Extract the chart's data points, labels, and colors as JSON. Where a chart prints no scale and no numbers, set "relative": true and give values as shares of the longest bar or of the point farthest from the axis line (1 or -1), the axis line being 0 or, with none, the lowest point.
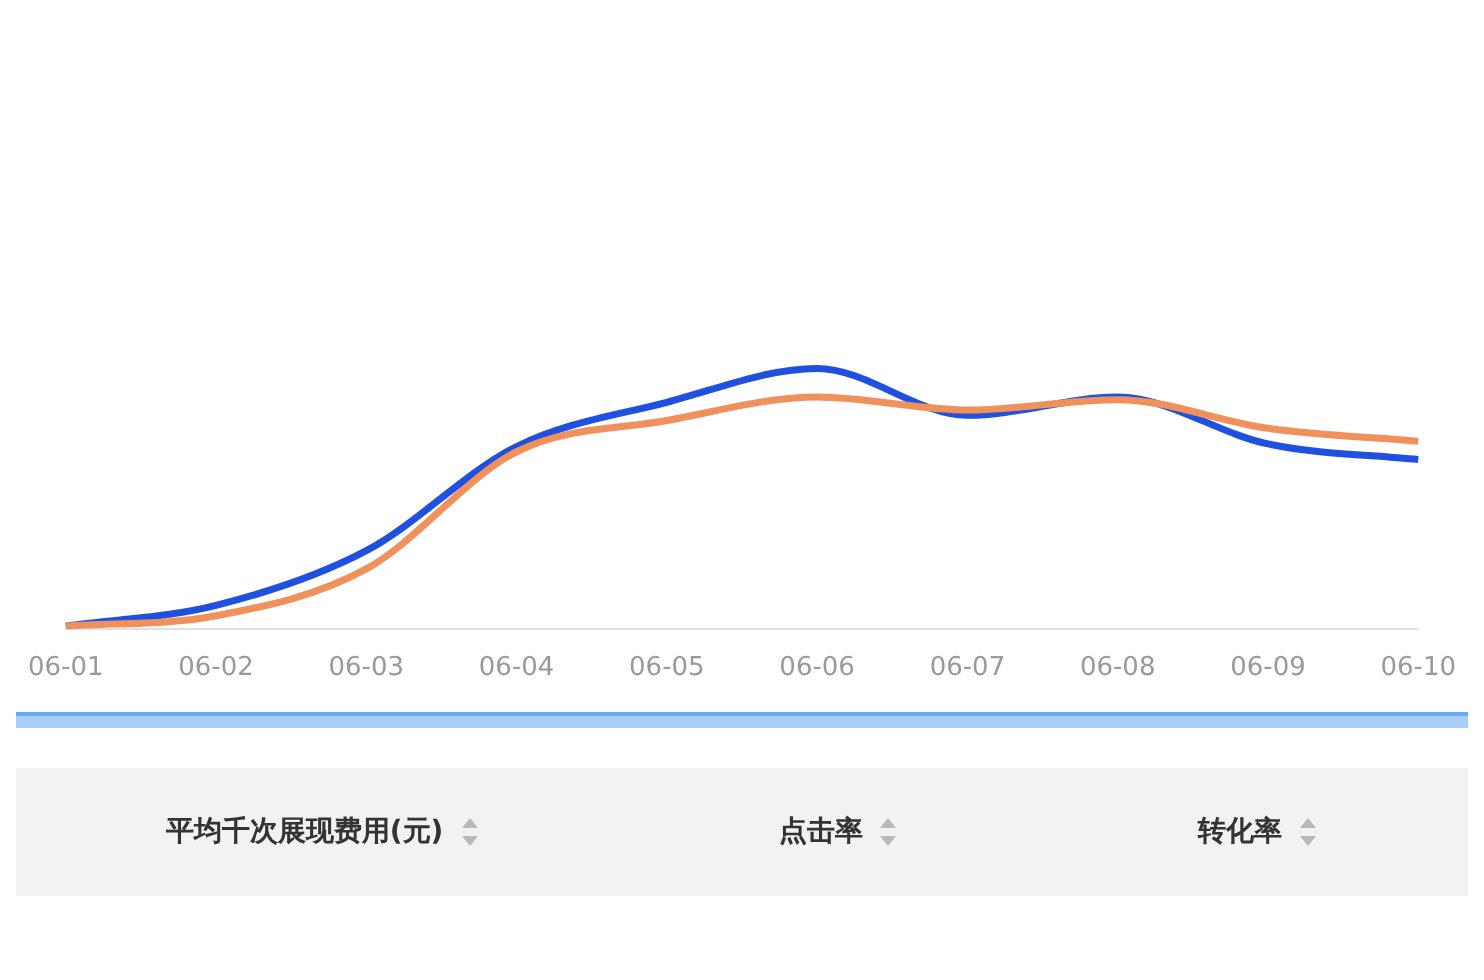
{
  "chart_data": {
    "type": "line",
    "relative": true,
    "categories": [
      "06-01",
      "06-02",
      "06-03",
      "06-04",
      "06-05",
      "06-06",
      "06-07",
      "06-08",
      "06-09",
      "06-10"
    ],
    "series": [
      {
        "color": "#f0905a",
        "values": [
          0.01,
          0.05,
          0.23,
          0.68,
          0.8,
          0.89,
          0.84,
          0.88,
          0.77,
          0.72
        ]
      },
      {
        "color": "#2050e0",
        "values": [
          0.01,
          0.09,
          0.3,
          0.7,
          0.87,
          1,
          0.82,
          0.89,
          0.71,
          0.65
        ]
      }
    ],
    "legend": false,
    "marker": "none",
    "line_style": "solid",
    "annotations": [
      "平均千次展现费用(元)",
      "点击率",
      "转化率"
    ]
  }
}
